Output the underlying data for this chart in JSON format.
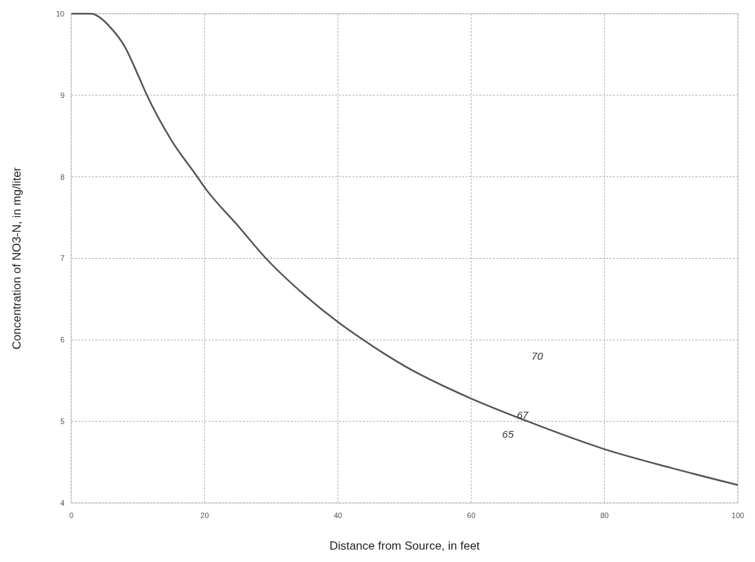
{
  "chart_data": {
    "type": "line",
    "xlabel": "Distance from Source, in feet",
    "ylabel": "Concentration of NO3-N, in mg/liter",
    "x": [
      0,
      2,
      3,
      4,
      6,
      8,
      10,
      11.35,
      15,
      18.9,
      20,
      25,
      29.2,
      35,
      40,
      43.8,
      50,
      60,
      68.5,
      80,
      90,
      100
    ],
    "series": [
      {
        "color": "#555555",
        "values": [
          10,
          10,
          10,
          9.97,
          9.82,
          9.6,
          9.25,
          9.0,
          8.45,
          8.0,
          7.87,
          7.4,
          7.0,
          6.55,
          6.22,
          6.0,
          5.68,
          5.28,
          5.0,
          4.66,
          4.43,
          4.22
        ]
      }
    ],
    "xlim": [
      0,
      100
    ],
    "xticks": [
      0,
      20,
      40,
      60,
      80,
      100
    ],
    "ylim": [
      4,
      10
    ],
    "yticks": [
      4,
      5,
      6,
      7,
      8,
      9,
      10
    ],
    "grid": true,
    "marker": "none",
    "line_style": "solid",
    "annotations": [
      "65",
      "67",
      "70"
    ]
  }
}
